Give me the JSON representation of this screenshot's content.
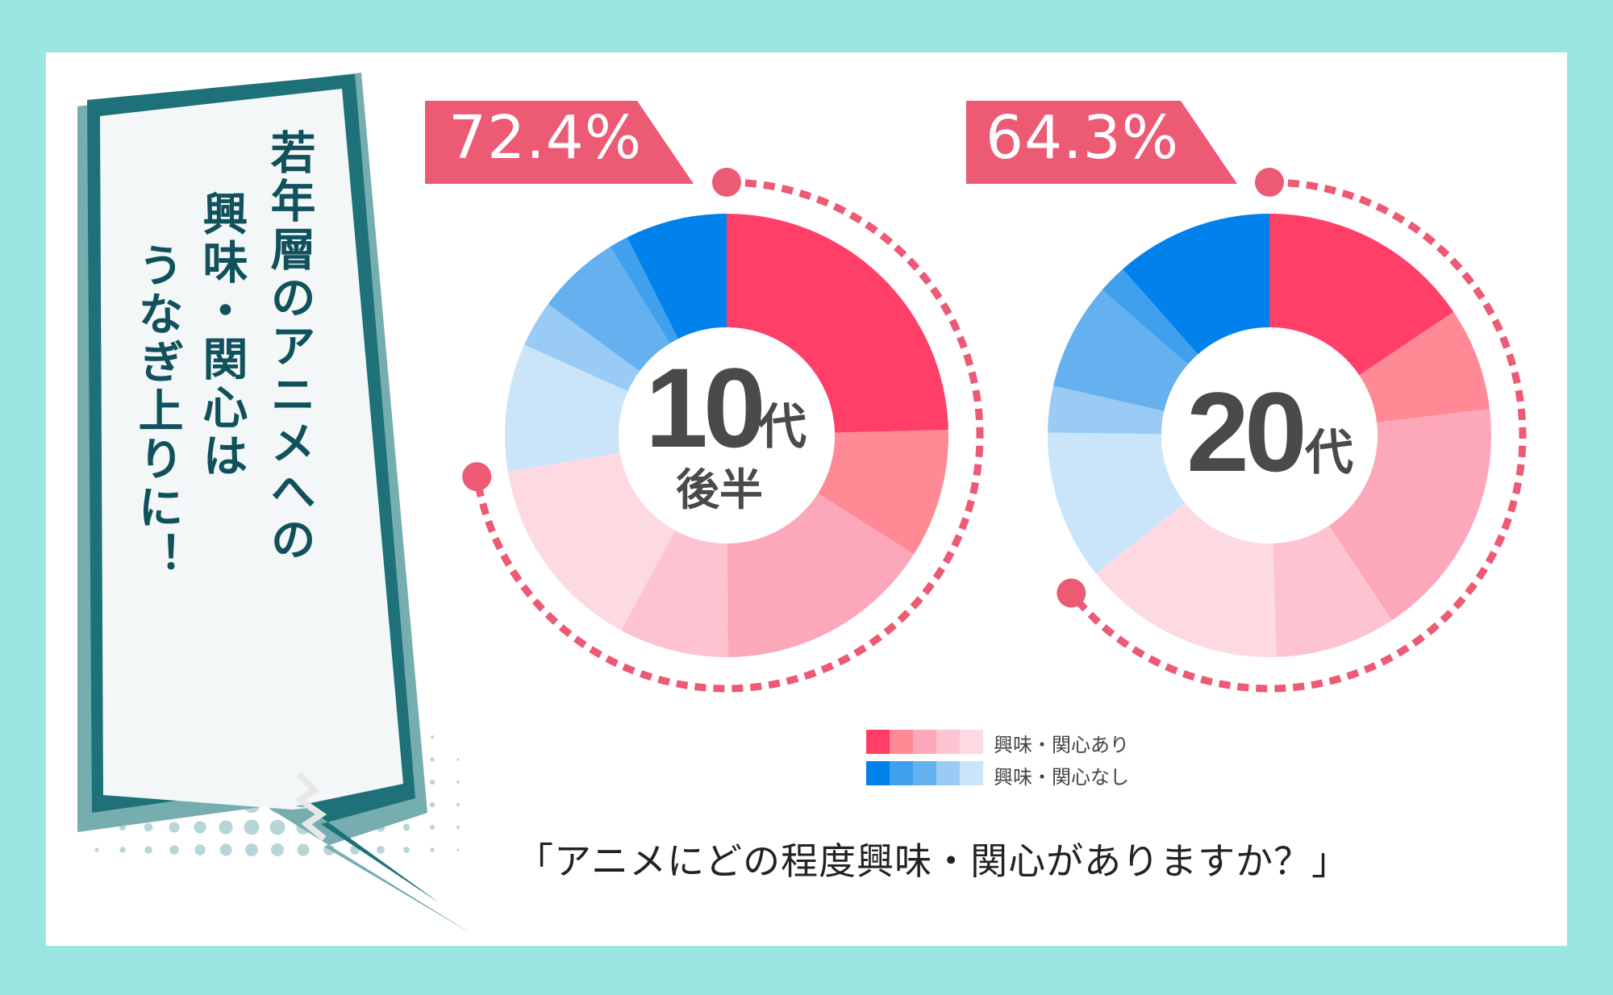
{
  "headline": {
    "lines": [
      "若年層のアニメへの",
      "興味・関心は",
      "うなぎ上りに！"
    ]
  },
  "legend": {
    "interested_label": "興味・関心あり",
    "not_interested_label": "興味・関心なし",
    "interested_colors": [
      "#ff3f68",
      "#ff8a96",
      "#fda7ba",
      "#fdc3d0",
      "#fdd9e2"
    ],
    "not_interested_colors": [
      "#0081ec",
      "#3fa0ee",
      "#65b1f0",
      "#9acbf5",
      "#cae5fa"
    ]
  },
  "question": "「アニメにどの程度興味・関心がありますか？」",
  "colors": {
    "background": "#9ce6e2",
    "accent_pink": "#ec5a74",
    "bubble_dark": "#1e7178",
    "bubble_light": "#76adaf",
    "text_dark": "#10515c"
  },
  "chart_data": [
    {
      "type": "pie",
      "title": "10代後半",
      "center_label_num": "10",
      "center_label_suffix": "代",
      "center_label_sub": "後半",
      "highlight_value": "72.4%",
      "highlight_percent": 72.4,
      "categories": [
        "興味・関心あり (1)",
        "興味・関心あり (2)",
        "興味・関心あり (3)",
        "興味・関心あり (4)",
        "興味・関心あり (5)",
        "興味・関心なし (5)",
        "興味・関心なし (4)",
        "興味・関心なし (3)",
        "興味・関心なし (2)",
        "興味・関心なし (1)"
      ],
      "values": [
        24.6,
        9.4,
        15.9,
        8.0,
        14.5,
        9.3,
        3.4,
        6.1,
        1.4,
        7.4
      ],
      "colors": [
        "#ff3f68",
        "#ff8a96",
        "#fda7ba",
        "#fdc3d0",
        "#fdd9e2",
        "#cae5fa",
        "#9acbf5",
        "#65b1f0",
        "#3fa0ee",
        "#0081ec"
      ],
      "groups": {
        "興味・関心あり": 72.4,
        "興味・関心なし": 27.6
      }
    },
    {
      "type": "pie",
      "title": "20代",
      "center_label_num": "20",
      "center_label_suffix": "代",
      "center_label_sub": "",
      "highlight_value": "64.3%",
      "highlight_percent": 64.3,
      "categories": [
        "興味・関心あり (1)",
        "興味・関心あり (2)",
        "興味・関心あり (3)",
        "興味・関心あり (4)",
        "興味・関心あり (5)",
        "興味・関心なし (5)",
        "興味・関心なし (4)",
        "興味・関心なし (3)",
        "興味・関心なし (2)",
        "興味・関心なし (1)"
      ],
      "values": [
        15.6,
        7.5,
        17.6,
        8.8,
        14.8,
        10.9,
        3.4,
        7.8,
        2.1,
        11.5
      ],
      "colors": [
        "#ff3f68",
        "#ff8a96",
        "#fda7ba",
        "#fdc3d0",
        "#fdd9e2",
        "#cae5fa",
        "#9acbf5",
        "#65b1f0",
        "#3fa0ee",
        "#0081ec"
      ],
      "groups": {
        "興味・関心あり": 64.3,
        "興味・関心なし": 35.7
      }
    }
  ]
}
